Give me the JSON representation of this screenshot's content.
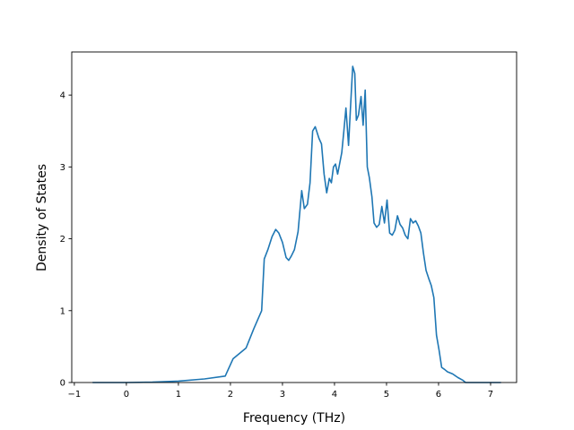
{
  "chart_data": {
    "type": "line",
    "title": "",
    "xlabel": "Frequency (THz)",
    "ylabel": "Density of States",
    "xlim": [
      -1.05,
      7.5
    ],
    "ylim": [
      0,
      4.6
    ],
    "xticks": [
      -1,
      0,
      1,
      2,
      3,
      4,
      5,
      6,
      7
    ],
    "yticks": [
      0,
      1,
      2,
      3,
      4
    ],
    "grid": false,
    "legend": "none",
    "series": [
      {
        "color": "#1f77b4",
        "x": [
          -0.65,
          0.0,
          0.5,
          1.0,
          1.5,
          1.9,
          2.05,
          2.3,
          2.45,
          2.6,
          2.65,
          2.72,
          2.8,
          2.87,
          2.93,
          3.0,
          3.07,
          3.12,
          3.17,
          3.23,
          3.3,
          3.37,
          3.42,
          3.48,
          3.53,
          3.58,
          3.63,
          3.7,
          3.75,
          3.8,
          3.85,
          3.9,
          3.94,
          3.98,
          4.02,
          4.06,
          4.1,
          4.14,
          4.18,
          4.22,
          4.27,
          4.31,
          4.35,
          4.39,
          4.42,
          4.46,
          4.51,
          4.55,
          4.59,
          4.63,
          4.67,
          4.72,
          4.76,
          4.81,
          4.86,
          4.91,
          4.96,
          5.01,
          5.06,
          5.11,
          5.16,
          5.21,
          5.26,
          5.31,
          5.36,
          5.41,
          5.46,
          5.51,
          5.56,
          5.61,
          5.66,
          5.71,
          5.76,
          5.81,
          5.86,
          5.91,
          5.96,
          6.01,
          6.06,
          6.12,
          6.17,
          6.27,
          6.37,
          6.47,
          6.52,
          6.6,
          6.8,
          7.2
        ],
        "y": [
          0.0,
          0.0,
          0.005,
          0.02,
          0.05,
          0.09,
          0.33,
          0.48,
          0.75,
          1.0,
          1.72,
          1.85,
          2.03,
          2.13,
          2.08,
          1.95,
          1.74,
          1.7,
          1.76,
          1.85,
          2.1,
          2.67,
          2.42,
          2.48,
          2.78,
          3.5,
          3.56,
          3.4,
          3.32,
          2.9,
          2.64,
          2.84,
          2.78,
          3.0,
          3.04,
          2.9,
          3.05,
          3.2,
          3.5,
          3.82,
          3.3,
          3.86,
          4.4,
          4.3,
          3.65,
          3.72,
          3.98,
          3.58,
          4.07,
          3.0,
          2.85,
          2.58,
          2.22,
          2.16,
          2.2,
          2.45,
          2.22,
          2.54,
          2.08,
          2.05,
          2.12,
          2.32,
          2.2,
          2.15,
          2.05,
          2.0,
          2.28,
          2.22,
          2.25,
          2.18,
          2.08,
          1.8,
          1.56,
          1.45,
          1.35,
          1.18,
          0.66,
          0.45,
          0.21,
          0.18,
          0.15,
          0.12,
          0.07,
          0.03,
          0.0,
          0.0,
          0.0,
          0.0
        ]
      }
    ]
  }
}
